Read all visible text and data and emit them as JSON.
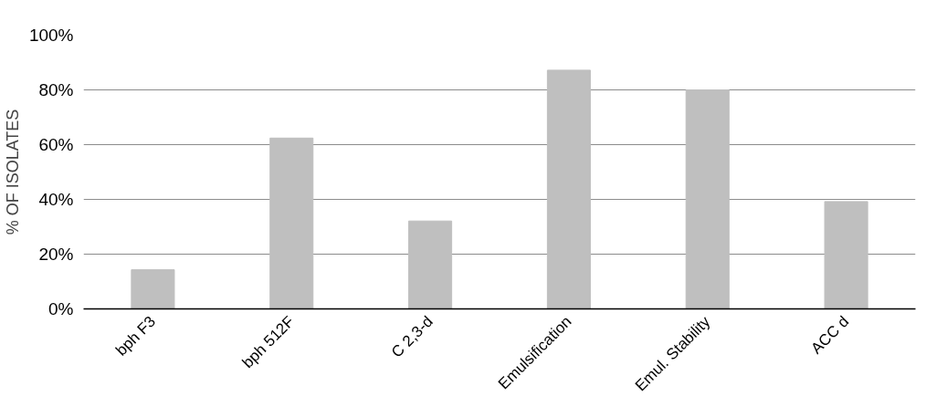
{
  "chart_data": {
    "type": "bar",
    "ylabel": "% OF ISOLATES",
    "categories": [
      "bph F3",
      "bph 512F",
      "C 2,3-d",
      "Emulsification",
      "Emul. Stability",
      "ACC d"
    ],
    "values": [
      14.3,
      62.4,
      32.1,
      87.2,
      80.0,
      39.2
    ],
    "color": "#bfbfbf",
    "ylim": [
      0,
      100
    ],
    "yticks": [
      {
        "value": 0,
        "label": "0%"
      },
      {
        "value": 20,
        "label": "20%"
      },
      {
        "value": 40,
        "label": "40%"
      },
      {
        "value": 60,
        "label": "60%"
      },
      {
        "value": 80,
        "label": "80%"
      },
      {
        "value": 100,
        "label": "100%"
      }
    ],
    "grid": "y"
  }
}
